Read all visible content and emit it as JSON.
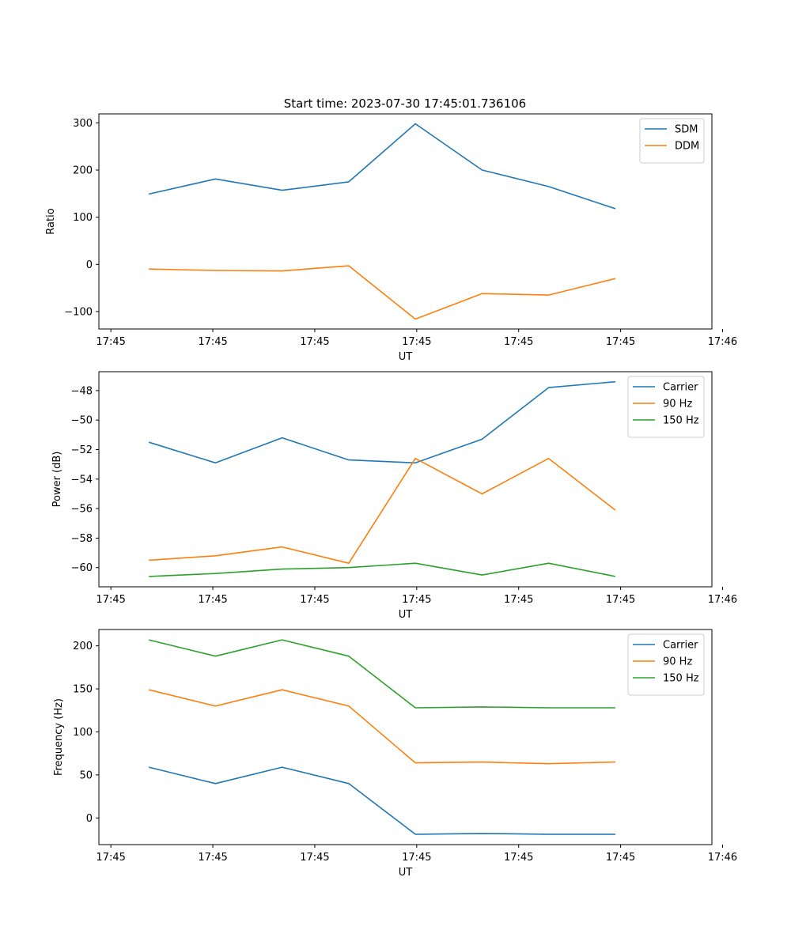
{
  "figure": {
    "title": "Start time: 2023-07-30 17:45:01.736106"
  },
  "colors": {
    "series_blue": "#1f77b4",
    "series_orange": "#ff7f0e",
    "series_green": "#2ca02c"
  },
  "chart_data": [
    {
      "type": "line",
      "title": "Start time: 2023-07-30 17:45:01.736106",
      "xlabel": "UT",
      "ylabel": "Ratio",
      "x": [
        1,
        2,
        3,
        4,
        5,
        6,
        7,
        8
      ],
      "xlim": [
        0.25,
        9.45
      ],
      "xticks": [
        0.43,
        1.96,
        3.49,
        5.02,
        6.55,
        8.08,
        9.61
      ],
      "xtick_labels": [
        "17:45",
        "17:45",
        "17:45",
        "17:45",
        "17:45",
        "17:45",
        "17:46"
      ],
      "ylim": [
        -137,
        319
      ],
      "yticks": [
        -100,
        0,
        100,
        200,
        300
      ],
      "ytick_labels": [
        "−100",
        "0",
        "100",
        "200",
        "300"
      ],
      "legend_loc": "top-right",
      "series": [
        {
          "name": "SDM",
          "color": "#1f77b4",
          "values": [
            149,
            181,
            157,
            175,
            298,
            200,
            165,
            118
          ]
        },
        {
          "name": "DDM",
          "color": "#ff7f0e",
          "values": [
            -10,
            -13,
            -14,
            -3,
            -116,
            -62,
            -65,
            -30
          ]
        }
      ]
    },
    {
      "type": "line",
      "xlabel": "UT",
      "ylabel": "Power (dB)",
      "x": [
        1,
        2,
        3,
        4,
        5,
        6,
        7,
        8
      ],
      "xlim": [
        0.25,
        9.45
      ],
      "xticks": [
        0.43,
        1.96,
        3.49,
        5.02,
        6.55,
        8.08,
        9.61
      ],
      "xtick_labels": [
        "17:45",
        "17:45",
        "17:45",
        "17:45",
        "17:45",
        "17:45",
        "17:46"
      ],
      "ylim": [
        -61.3,
        -46.72
      ],
      "yticks": [
        -60,
        -58,
        -56,
        -54,
        -52,
        -50,
        -48
      ],
      "ytick_labels": [
        "−60",
        "−58",
        "−56",
        "−54",
        "−52",
        "−50",
        "−48"
      ],
      "legend_loc": "top-right",
      "series": [
        {
          "name": "Carrier",
          "color": "#1f77b4",
          "values": [
            -51.5,
            -52.9,
            -51.2,
            -52.7,
            -52.9,
            -51.3,
            -47.8,
            -47.4
          ]
        },
        {
          "name": "90 Hz",
          "color": "#ff7f0e",
          "values": [
            -59.5,
            -59.2,
            -58.6,
            -59.7,
            -52.6,
            -55.0,
            -52.6,
            -56.1
          ]
        },
        {
          "name": "150 Hz",
          "color": "#2ca02c",
          "values": [
            -60.6,
            -60.4,
            -60.1,
            -60.0,
            -59.7,
            -60.5,
            -59.7,
            -60.6
          ]
        }
      ]
    },
    {
      "type": "line",
      "xlabel": "UT",
      "ylabel": "Frequency (Hz)",
      "x": [
        1,
        2,
        3,
        4,
        5,
        6,
        7,
        8
      ],
      "xlim": [
        0.25,
        9.45
      ],
      "xticks": [
        0.43,
        1.96,
        3.49,
        5.02,
        6.55,
        8.08,
        9.61
      ],
      "xtick_labels": [
        "17:45",
        "17:45",
        "17:45",
        "17:45",
        "17:45",
        "17:45",
        "17:46"
      ],
      "ylim": [
        -31,
        219
      ],
      "yticks": [
        0,
        50,
        100,
        150,
        200
      ],
      "ytick_labels": [
        "0",
        "50",
        "100",
        "150",
        "200"
      ],
      "legend_loc": "top-right",
      "series": [
        {
          "name": "Carrier",
          "color": "#1f77b4",
          "values": [
            59,
            40,
            59,
            40,
            -19,
            -18,
            -19,
            -19
          ]
        },
        {
          "name": "90 Hz",
          "color": "#ff7f0e",
          "values": [
            149,
            130,
            149,
            130,
            64,
            65,
            63,
            65
          ]
        },
        {
          "name": "150 Hz",
          "color": "#2ca02c",
          "values": [
            207,
            188,
            207,
            188,
            128,
            129,
            128,
            128
          ]
        }
      ]
    }
  ]
}
